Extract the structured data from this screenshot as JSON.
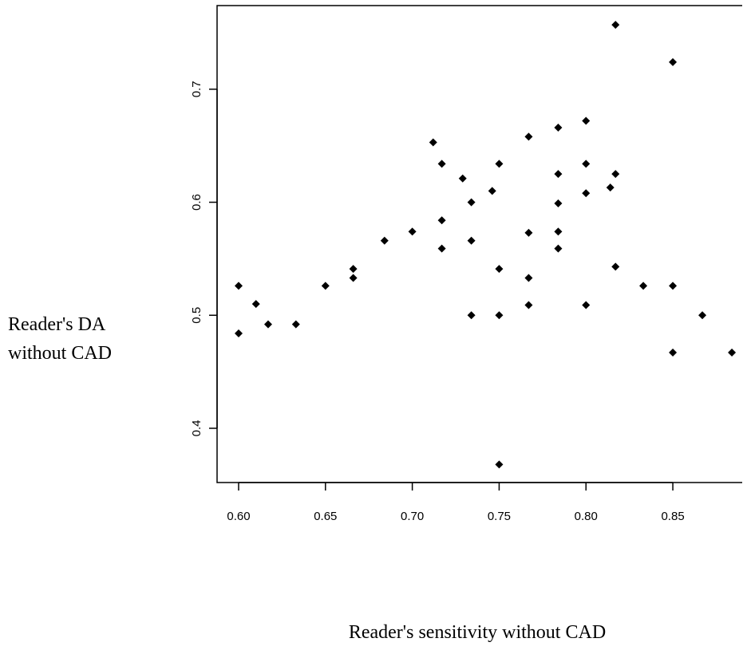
{
  "chart_data": {
    "type": "scatter",
    "xlabel": "Reader's sensitivity without CAD",
    "ylabel": [
      "Reader's DA",
      "without CAD"
    ],
    "color": "#000000",
    "xlim": [
      0.5876,
      0.8904
    ],
    "ylim": [
      0.352,
      0.774
    ],
    "xticks": [
      {
        "value": 0.6,
        "label": "0.60"
      },
      0.65,
      {
        "value": 0.7,
        "label": "0.70"
      },
      0.75,
      {
        "value": 0.8,
        "label": "0.80"
      },
      0.85
    ],
    "yticks": [
      0.4,
      0.5,
      0.6,
      0.7
    ],
    "x": [
      0.817,
      0.85,
      0.8,
      0.784,
      0.767,
      0.712,
      0.717,
      0.75,
      0.8,
      0.729,
      0.784,
      0.817,
      0.746,
      0.814,
      0.8,
      0.734,
      0.784,
      0.717,
      0.684,
      0.7,
      0.734,
      0.767,
      0.784,
      0.717,
      0.784,
      0.666,
      0.666,
      0.75,
      0.767,
      0.817,
      0.6,
      0.65,
      0.833,
      0.85,
      0.61,
      0.767,
      0.8,
      0.617,
      0.633,
      0.734,
      0.75,
      0.867,
      0.6,
      0.85,
      0.884,
      0.75
    ],
    "y": [
      0.757,
      0.724,
      0.672,
      0.666,
      0.658,
      0.653,
      0.634,
      0.634,
      0.634,
      0.621,
      0.625,
      0.625,
      0.61,
      0.613,
      0.608,
      0.6,
      0.599,
      0.584,
      0.566,
      0.574,
      0.566,
      0.573,
      0.574,
      0.559,
      0.559,
      0.541,
      0.533,
      0.541,
      0.533,
      0.543,
      0.526,
      0.526,
      0.526,
      0.526,
      0.51,
      0.509,
      0.509,
      0.492,
      0.492,
      0.5,
      0.5,
      0.5,
      0.484,
      0.467,
      0.467,
      0.368
    ]
  }
}
